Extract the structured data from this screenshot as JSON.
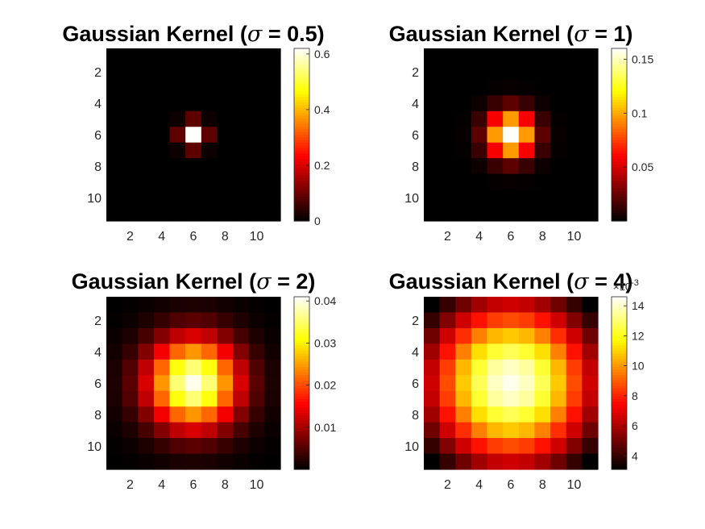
{
  "figure": {
    "background": "#ffffff",
    "colormap": "hot"
  },
  "chart_data": [
    {
      "type": "heatmap",
      "title_prefix": "Gaussian Kernel (",
      "title_symbol": "σ",
      "title_suffix": " = 0.5)",
      "sigma": 0.5,
      "size": 11,
      "x_ticks": [
        2,
        4,
        6,
        8,
        10
      ],
      "y_ticks": [
        2,
        4,
        6,
        8,
        10
      ],
      "color_limits": [
        0,
        0.62
      ],
      "colorbar_ticks": [
        0,
        0.2,
        0.4,
        0.6
      ],
      "colorbar_tick_labels": [
        "0",
        "0.2",
        "0.4",
        "0.6"
      ],
      "colorbar_exponent": ""
    },
    {
      "type": "heatmap",
      "title_prefix": "Gaussian Kernel (",
      "title_symbol": "σ",
      "title_suffix": " = 1)",
      "sigma": 1,
      "size": 11,
      "x_ticks": [
        2,
        4,
        6,
        8,
        10
      ],
      "y_ticks": [
        2,
        4,
        6,
        8,
        10
      ],
      "color_limits": [
        0,
        0.16
      ],
      "colorbar_ticks": [
        0.05,
        0.1,
        0.15
      ],
      "colorbar_tick_labels": [
        "0.05",
        "0.1",
        "0.15"
      ],
      "colorbar_exponent": ""
    },
    {
      "type": "heatmap",
      "title_prefix": "Gaussian Kernel (",
      "title_symbol": "σ",
      "title_suffix": " = 2)",
      "sigma": 2,
      "size": 11,
      "x_ticks": [
        2,
        4,
        6,
        8,
        10
      ],
      "y_ticks": [
        2,
        4,
        6,
        8,
        10
      ],
      "color_limits": [
        0,
        0.041
      ],
      "colorbar_ticks": [
        0.01,
        0.02,
        0.03,
        0.04
      ],
      "colorbar_tick_labels": [
        "0.01",
        "0.02",
        "0.03",
        "0.04"
      ],
      "colorbar_exponent": ""
    },
    {
      "type": "heatmap",
      "title_prefix": "Gaussian Kernel (",
      "title_symbol": "σ",
      "title_suffix": " = 4)",
      "sigma": 4,
      "size": 11,
      "x_ticks": [
        2,
        4,
        6,
        8,
        10
      ],
      "y_ticks": [
        2,
        4,
        6,
        8,
        10
      ],
      "color_limits": [
        0.0031,
        0.0146
      ],
      "colorbar_ticks": [
        0.004,
        0.006,
        0.008,
        0.01,
        0.012,
        0.014
      ],
      "colorbar_tick_labels": [
        "4",
        "6",
        "8",
        "10",
        "12",
        "14"
      ],
      "colorbar_exponent": "×10",
      "colorbar_exponent_power": "-3"
    }
  ]
}
